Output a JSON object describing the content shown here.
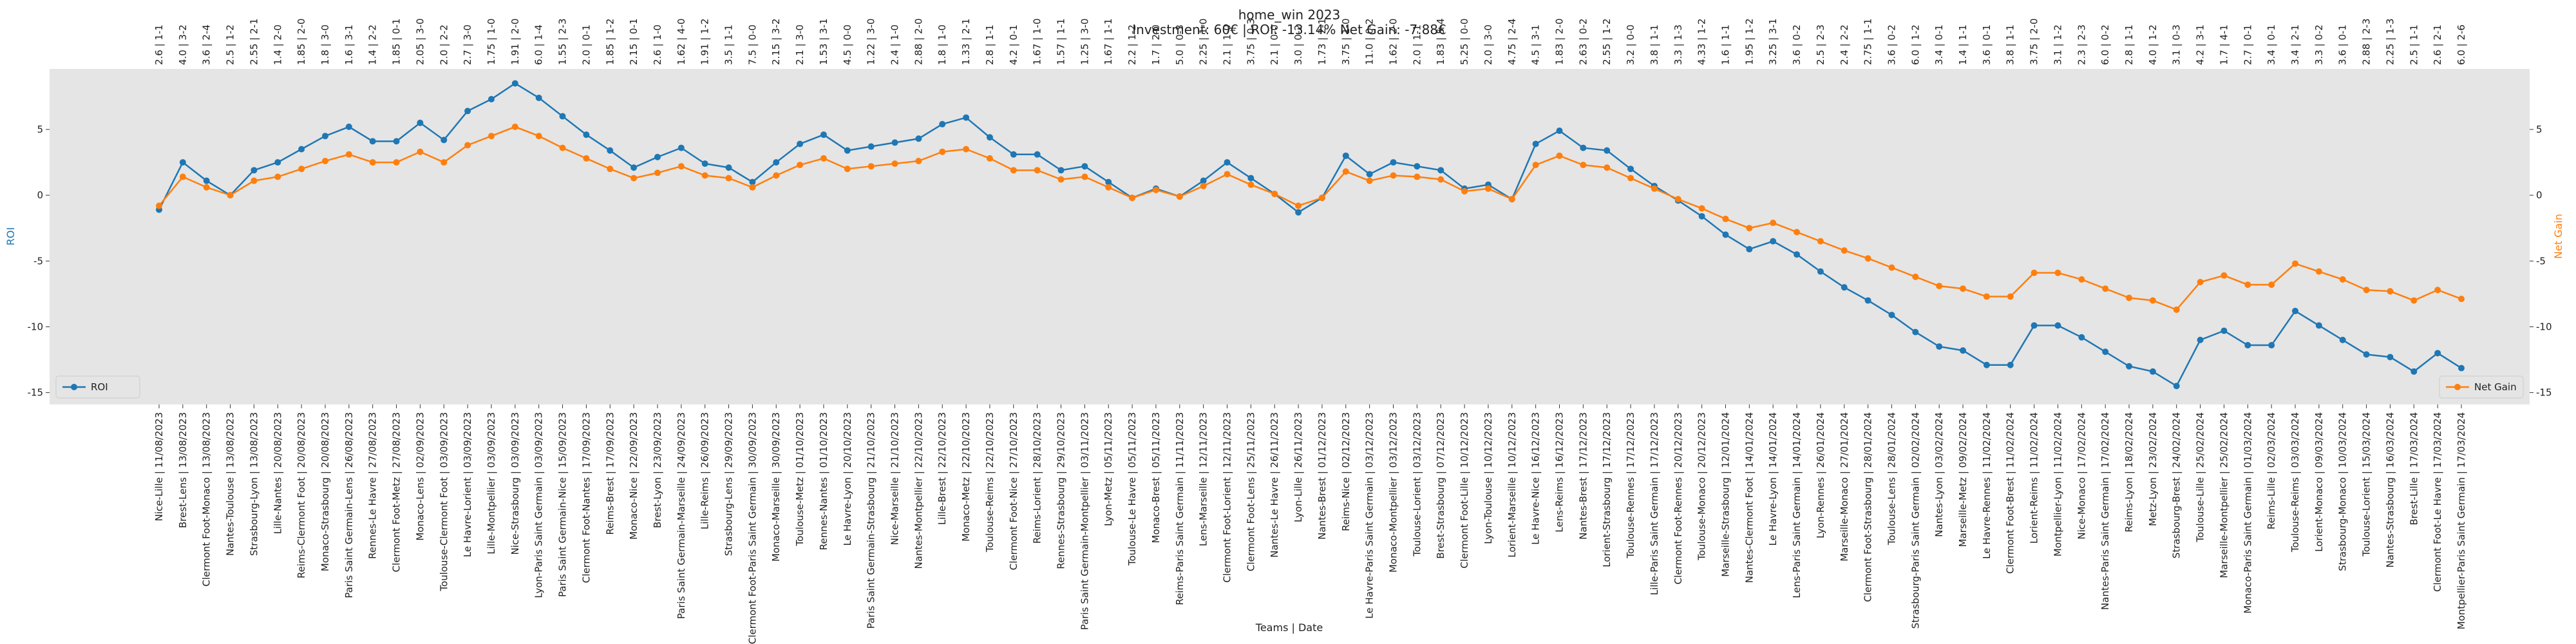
{
  "chart_data": {
    "type": "line",
    "title": "home_win 2023",
    "subtitle": "Investment: 60€ | ROI: -13.14% Net Gain: -7.88€",
    "xlabel": "Teams | Date",
    "ylabel": "ROI",
    "y2label": "Net Gain",
    "categories": [
      "Nice-Lille | 11/08/2023",
      "Brest-Lens | 13/08/2023",
      "Clermont Foot-Monaco | 13/08/2023",
      "Nantes-Toulouse | 13/08/2023",
      "Strasbourg-Lyon | 13/08/2023",
      "Lille-Nantes | 20/08/2023",
      "Reims-Clermont Foot | 20/08/2023",
      "Monaco-Strasbourg | 20/08/2023",
      "Paris Saint Germain-Lens | 26/08/2023",
      "Rennes-Le Havre | 27/08/2023",
      "Clermont Foot-Metz | 27/08/2023",
      "Monaco-Lens | 02/09/2023",
      "Toulouse-Clermont Foot | 03/09/2023",
      "Le Havre-Lorient | 03/09/2023",
      "Lille-Montpellier | 03/09/2023",
      "Nice-Strasbourg | 03/09/2023",
      "Lyon-Paris Saint Germain | 03/09/2023",
      "Paris Saint Germain-Nice | 15/09/2023",
      "Clermont Foot-Nantes | 17/09/2023",
      "Reims-Brest | 17/09/2023",
      "Monaco-Nice | 22/09/2023",
      "Brest-Lyon | 23/09/2023",
      "Paris Saint Germain-Marseille | 24/09/2023",
      "Lille-Reims | 26/09/2023",
      "Strasbourg-Lens | 29/09/2023",
      "Clermont Foot-Paris Saint Germain | 30/09/2023",
      "Monaco-Marseille | 30/09/2023",
      "Toulouse-Metz | 01/10/2023",
      "Rennes-Nantes | 01/10/2023",
      "Le Havre-Lyon | 20/10/2023",
      "Paris Saint Germain-Strasbourg | 21/10/2023",
      "Nice-Marseille | 21/10/2023",
      "Nantes-Montpellier | 22/10/2023",
      "Lille-Brest | 22/10/2023",
      "Monaco-Metz | 22/10/2023",
      "Toulouse-Reims | 22/10/2023",
      "Clermont Foot-Nice | 27/10/2023",
      "Reims-Lorient | 28/10/2023",
      "Rennes-Strasbourg | 29/10/2023",
      "Paris Saint Germain-Montpellier | 03/11/2023",
      "Lyon-Metz | 05/11/2023",
      "Toulouse-Le Havre | 05/11/2023",
      "Monaco-Brest | 05/11/2023",
      "Reims-Paris Saint Germain | 11/11/2023",
      "Lens-Marseille | 12/11/2023",
      "Clermont Foot-Lorient | 12/11/2023",
      "Clermont Foot-Lens | 25/11/2023",
      "Nantes-Le Havre | 26/11/2023",
      "Lyon-Lille | 26/11/2023",
      "Nantes-Brest | 01/12/2023",
      "Reims-Nice | 02/12/2023",
      "Le Havre-Paris Saint Germain | 03/12/2023",
      "Monaco-Montpellier | 03/12/2023",
      "Toulouse-Lorient | 03/12/2023",
      "Brest-Strasbourg | 07/12/2023",
      "Clermont Foot-Lille | 10/12/2023",
      "Lyon-Toulouse | 10/12/2023",
      "Lorient-Marseille | 10/12/2023",
      "Le Havre-Nice | 16/12/2023",
      "Lens-Reims | 16/12/2023",
      "Nantes-Brest | 17/12/2023",
      "Lorient-Strasbourg | 17/12/2023",
      "Toulouse-Rennes | 17/12/2023",
      "Lille-Paris Saint Germain | 17/12/2023",
      "Clermont Foot-Rennes | 20/12/2023",
      "Toulouse-Monaco | 20/12/2023",
      "Marseille-Strasbourg | 12/01/2024",
      "Nantes-Clermont Foot | 14/01/2024",
      "Le Havre-Lyon | 14/01/2024",
      "Lens-Paris Saint Germain | 14/01/2024",
      "Lyon-Rennes | 26/01/2024",
      "Marseille-Monaco | 27/01/2024",
      "Clermont Foot-Strasbourg | 28/01/2024",
      "Toulouse-Lens | 28/01/2024",
      "Strasbourg-Paris Saint Germain | 02/02/2024",
      "Nantes-Lyon | 03/02/2024",
      "Marseille-Metz | 09/02/2024",
      "Le Havre-Rennes | 11/02/2024",
      "Clermont Foot-Brest | 11/02/2024",
      "Lorient-Reims | 11/02/2024",
      "Montpellier-Lyon | 11/02/2024",
      "Nice-Monaco | 17/02/2024",
      "Nantes-Paris Saint Germain | 17/02/2024",
      "Reims-Lyon | 18/02/2024",
      "Metz-Lyon | 23/02/2024",
      "Strasbourg-Brest | 24/02/2024",
      "Toulouse-Lille | 25/02/2024",
      "Marseille-Montpellier | 25/02/2024",
      "Monaco-Paris Saint Germain | 01/03/2024",
      "Reims-Lille | 02/03/2024",
      "Toulouse-Reims | 03/03/2024",
      "Lorient-Monaco | 09/03/2024",
      "Strasbourg-Monaco | 10/03/2024",
      "Toulouse-Lorient | 15/03/2024",
      "Nantes-Strasbourg | 16/03/2024",
      "Brest-Lille | 17/03/2024",
      "Clermont Foot-Le Havre | 17/03/2024",
      "Montpellier-Paris Saint Germain | 17/03/2024"
    ],
    "annotations": [
      "2.6 | 1-1",
      "4.0 | 3-2",
      "3.6 | 2-4",
      "2.5 | 1-2",
      "2.55 | 2-1",
      "1.4 | 2-0",
      "1.85 | 2-0",
      "1.8 | 3-0",
      "1.6 | 3-1",
      "1.4 | 2-2",
      "1.85 | 0-1",
      "2.05 | 3-0",
      "2.0 | 2-2",
      "2.7 | 3-0",
      "1.75 | 1-0",
      "1.91 | 2-0",
      "6.0 | 1-4",
      "1.55 | 2-3",
      "2.0 | 0-1",
      "1.85 | 1-2",
      "2.15 | 0-1",
      "2.6 | 1-0",
      "1.62 | 4-0",
      "1.91 | 1-2",
      "3.5 | 1-1",
      "7.5 | 0-0",
      "2.15 | 3-2",
      "2.1 | 3-0",
      "1.53 | 3-1",
      "4.5 | 0-0",
      "1.22 | 3-0",
      "2.4 | 1-0",
      "2.88 | 2-0",
      "1.8 | 1-0",
      "1.33 | 2-1",
      "2.8 | 1-1",
      "4.2 | 0-1",
      "1.67 | 1-0",
      "1.57 | 1-1",
      "1.25 | 3-0",
      "1.67 | 1-1",
      "2.2 | 1-2",
      "1.7 | 2-0",
      "5.0 | 0-3",
      "2.25 | 1-0",
      "2.1 | 1-0",
      "3.75 | 0-3",
      "2.1 | 0-0",
      "3.0 | 0-2",
      "1.73 | 2-1",
      "3.75 | 1-0",
      "11.0 | 0-2",
      "1.62 | 2-0",
      "2.0 | 1-1",
      "1.83 | 5-4",
      "5.25 | 0-0",
      "2.0 | 3-0",
      "4.75 | 2-4",
      "4.5 | 3-1",
      "1.83 | 2-0",
      "2.63 | 0-2",
      "2.55 | 1-2",
      "3.2 | 0-0",
      "3.8 | 1-1",
      "3.3 | 1-3",
      "4.33 | 1-2",
      "1.6 | 1-1",
      "1.95 | 1-2",
      "3.25 | 3-1",
      "3.6 | 0-2",
      "2.5 | 2-3",
      "2.4 | 2-2",
      "2.75 | 1-1",
      "3.6 | 0-2",
      "6.0 | 1-2",
      "3.4 | 0-1",
      "1.4 | 1-1",
      "3.6 | 0-1",
      "3.8 | 1-1",
      "3.75 | 2-0",
      "3.1 | 1-2",
      "2.3 | 2-3",
      "6.0 | 0-2",
      "2.8 | 1-1",
      "4.0 | 1-2",
      "3.1 | 0-3",
      "4.2 | 3-1",
      "1.7 | 4-1",
      "2.7 | 0-1",
      "3.4 | 0-1",
      "3.4 | 2-1",
      "3.3 | 0-2",
      "3.6 | 0-1",
      "2.88 | 2-3",
      "2.25 | 1-3",
      "2.5 | 1-1",
      "2.6 | 2-1",
      "6.0 | 2-6"
    ],
    "series": [
      {
        "name": "ROI",
        "color": "#1f77b4",
        "axis": "y",
        "values": [
          -1.1,
          2.5,
          1.1,
          0,
          1.9,
          2.5,
          3.5,
          4.5,
          5.2,
          4.1,
          4.1,
          5.5,
          4.2,
          6.4,
          7.3,
          8.5,
          7.4,
          6.0,
          4.6,
          3.4,
          2.1,
          2.9,
          3.6,
          2.4,
          2.1,
          1.0,
          2.5,
          3.9,
          4.6,
          3.4,
          3.7,
          4.0,
          4.3,
          5.4,
          5.9,
          4.4,
          3.1,
          3.1,
          1.9,
          2.2,
          1.0,
          -0.2,
          0.5,
          -0.1,
          1.1,
          2.5,
          1.3,
          0.1,
          -1.3,
          -0.2,
          3.0,
          1.6,
          2.5,
          2.2,
          1.9,
          0.5,
          0.8,
          -0.3,
          3.9,
          4.9,
          3.6,
          3.4,
          2.0,
          0.7,
          -0.4,
          -1.6,
          -3.0,
          -4.1,
          -3.5,
          -4.5,
          -5.8,
          -7.0,
          -8.0,
          -9.1,
          -10.4,
          -11.5,
          -11.8,
          -12.9,
          -12.9,
          -9.9,
          -9.9,
          -10.8,
          -11.9,
          -13.0,
          -13.4,
          -14.5,
          -11.0,
          -10.3,
          -11.4,
          -11.4,
          -8.8,
          -9.9,
          -11.0,
          -12.1,
          -12.3,
          -13.4,
          -12.0,
          -13.14
        ]
      },
      {
        "name": "Net Gain",
        "color": "#ff7f0e",
        "axis": "y2",
        "values": [
          -0.8,
          1.4,
          0.6,
          0,
          1.1,
          1.4,
          2.0,
          2.6,
          3.1,
          2.5,
          2.5,
          3.3,
          2.5,
          3.8,
          4.5,
          5.2,
          4.5,
          3.6,
          2.8,
          2.0,
          1.3,
          1.7,
          2.2,
          1.5,
          1.3,
          0.6,
          1.5,
          2.3,
          2.8,
          2.0,
          2.2,
          2.4,
          2.6,
          3.3,
          3.5,
          2.8,
          1.9,
          1.9,
          1.2,
          1.4,
          0.6,
          -0.2,
          0.4,
          -0.1,
          0.7,
          1.6,
          0.8,
          0.1,
          -0.8,
          -0.2,
          1.8,
          1.1,
          1.5,
          1.4,
          1.2,
          0.3,
          0.5,
          -0.3,
          2.3,
          3.0,
          2.3,
          2.1,
          1.3,
          0.5,
          -0.3,
          -1.0,
          -1.8,
          -2.5,
          -2.1,
          -2.8,
          -3.5,
          -4.2,
          -4.8,
          -5.5,
          -6.2,
          -6.9,
          -7.1,
          -7.7,
          -7.7,
          -5.9,
          -5.9,
          -6.4,
          -7.1,
          -7.8,
          -8.0,
          -8.7,
          -6.6,
          -6.1,
          -6.8,
          -6.8,
          -5.2,
          -5.8,
          -6.4,
          -7.2,
          -7.3,
          -8.0,
          -7.2,
          -7.88
        ]
      }
    ],
    "ylim": [
      -15.9,
      9.6
    ],
    "yticks": [
      -15,
      -10,
      -5,
      0,
      5
    ],
    "y2lim": [
      -15.9,
      9.6
    ],
    "y2ticks": [
      -15,
      -10,
      -5,
      0,
      5
    ],
    "grid": false,
    "legend_loc": "lower left",
    "legend2_loc": "lower right"
  }
}
